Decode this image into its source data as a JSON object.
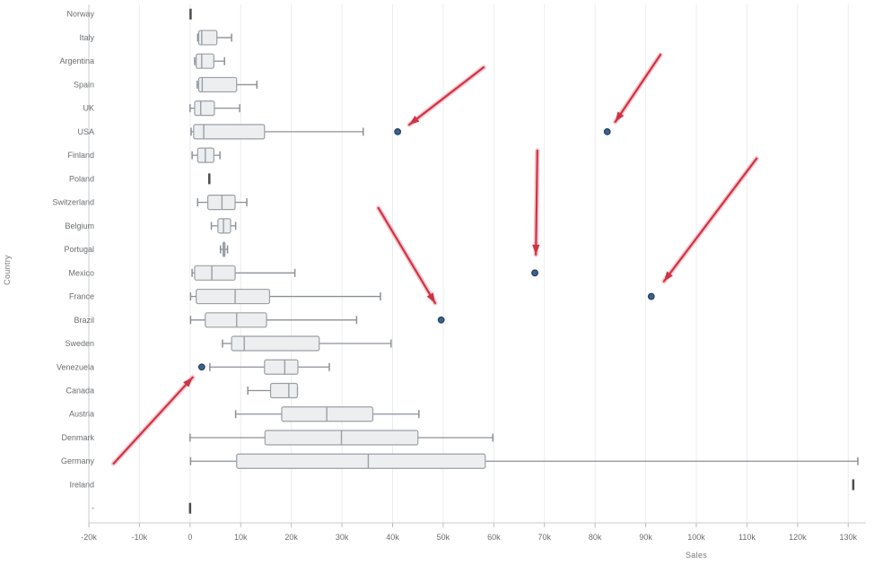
{
  "chart": {
    "y_axis_title": "Country",
    "x_axis_title": "Sales",
    "colors": {
      "box_fill": "#eceef0",
      "box_border": "#9aa0a6",
      "whisker": "#8c9196",
      "gridline": "#ebecee",
      "axis_line": "#c9cbcd",
      "tick_mark": "#b9bbbd",
      "label_text": "#6a6d70",
      "single_dash": "#4a4d50",
      "outlier_fill": "#3a628f",
      "outlier_stroke": "#273f5c",
      "arrow_core": "#cf3344",
      "arrow_glow": "rgba(232,112,128,0.38)"
    },
    "chart_data": {
      "type": "boxplot",
      "orientation": "horizontal",
      "value_unit": "thousands",
      "x_ticks": [
        {
          "value": -20,
          "label": "-20k"
        },
        {
          "value": -10,
          "label": "-10k"
        },
        {
          "value": 0,
          "label": "0"
        },
        {
          "value": 10,
          "label": "10k"
        },
        {
          "value": 20,
          "label": "20k"
        },
        {
          "value": 30,
          "label": "30k"
        },
        {
          "value": 40,
          "label": "40k"
        },
        {
          "value": 50,
          "label": "50k"
        },
        {
          "value": 60,
          "label": "60k"
        },
        {
          "value": 70,
          "label": "70k"
        },
        {
          "value": 80,
          "label": "80k"
        },
        {
          "value": 90,
          "label": "90k"
        },
        {
          "value": 100,
          "label": "100k"
        },
        {
          "value": 110,
          "label": "110k"
        },
        {
          "value": 120,
          "label": "120k"
        },
        {
          "value": 130,
          "label": "130k"
        }
      ],
      "x_range": [
        -20,
        133.5
      ],
      "series": [
        {
          "country": "Norway",
          "min": 0.1,
          "q1": 0.1,
          "median": 0.1,
          "q3": 0.1,
          "max": 0.1,
          "outliers": []
        },
        {
          "country": "Italy",
          "min": 1.5,
          "q1": 1.7,
          "median": 2.3,
          "q3": 5.3,
          "max": 8.2,
          "outliers": []
        },
        {
          "country": "Argentina",
          "min": 0.9,
          "q1": 1.2,
          "median": 2.3,
          "q3": 4.7,
          "max": 6.8,
          "outliers": []
        },
        {
          "country": "Spain",
          "min": 1.4,
          "q1": 1.7,
          "median": 2.4,
          "q3": 9.2,
          "max": 13.2,
          "outliers": []
        },
        {
          "country": "UK",
          "min": 0.0,
          "q1": 0.9,
          "median": 2.1,
          "q3": 4.8,
          "max": 9.8,
          "outliers": []
        },
        {
          "country": "USA",
          "min": 0.2,
          "q1": 0.7,
          "median": 2.7,
          "q3": 14.7,
          "max": 34.2,
          "outliers": [
            41.0,
            82.4
          ]
        },
        {
          "country": "Finland",
          "min": 0.4,
          "q1": 1.5,
          "median": 3.0,
          "q3": 4.7,
          "max": 5.9,
          "outliers": []
        },
        {
          "country": "Poland",
          "min": 3.8,
          "q1": 3.8,
          "median": 3.8,
          "q3": 3.8,
          "max": 3.8,
          "outliers": []
        },
        {
          "country": "Switzerland",
          "min": 1.5,
          "q1": 3.5,
          "median": 6.3,
          "q3": 8.9,
          "max": 11.2,
          "outliers": []
        },
        {
          "country": "Belgium",
          "min": 4.2,
          "q1": 5.5,
          "median": 6.6,
          "q3": 8.0,
          "max": 9.0,
          "outliers": []
        },
        {
          "country": "Portugal",
          "min": 6.0,
          "q1": 6.5,
          "median": 6.7,
          "q3": 6.9,
          "max": 7.4,
          "outliers": []
        },
        {
          "country": "Mexico",
          "min": 0.4,
          "q1": 0.9,
          "median": 4.3,
          "q3": 8.9,
          "max": 20.7,
          "outliers": [
            68.1
          ]
        },
        {
          "country": "France",
          "min": 0.1,
          "q1": 1.2,
          "median": 8.9,
          "q3": 15.7,
          "max": 37.6,
          "outliers": [
            91.1
          ]
        },
        {
          "country": "Brazil",
          "min": 0.1,
          "q1": 3.0,
          "median": 9.2,
          "q3": 15.1,
          "max": 32.9,
          "outliers": [
            49.6
          ]
        },
        {
          "country": "Sweden",
          "min": 6.4,
          "q1": 8.2,
          "median": 10.7,
          "q3": 25.5,
          "max": 39.7,
          "outliers": []
        },
        {
          "country": "Venezuela",
          "min": 3.9,
          "q1": 14.7,
          "median": 18.7,
          "q3": 21.3,
          "max": 27.5,
          "outliers": [
            2.3
          ]
        },
        {
          "country": "Canada",
          "min": 11.4,
          "q1": 15.9,
          "median": 19.5,
          "q3": 21.2,
          "max": 21.2,
          "outliers": []
        },
        {
          "country": "Austria",
          "min": 9.0,
          "q1": 18.1,
          "median": 27.0,
          "q3": 36.1,
          "max": 45.2,
          "outliers": []
        },
        {
          "country": "Denmark",
          "min": 0.0,
          "q1": 14.8,
          "median": 29.9,
          "q3": 45.0,
          "max": 59.8,
          "outliers": []
        },
        {
          "country": "Germany",
          "min": 0.1,
          "q1": 9.2,
          "median": 35.2,
          "q3": 58.3,
          "max": 131.9,
          "outliers": []
        },
        {
          "country": "Ireland",
          "min": 131.0,
          "q1": 131.0,
          "median": 131.0,
          "q3": 131.0,
          "max": 131.0,
          "outliers": []
        },
        {
          "country": "-",
          "min": 0.0,
          "q1": 0.0,
          "median": 0.0,
          "q3": 0.0,
          "max": 0.0,
          "outliers": []
        }
      ],
      "annotations": {
        "arrows": [
          {
            "points_to": "USA outlier 41k",
            "x1": 58.0,
            "row1": 2.26,
            "x2": 43.3,
            "row2": 4.7
          },
          {
            "points_to": "USA outlier 82k",
            "x1": 92.9,
            "row1": 1.73,
            "x2": 84.0,
            "row2": 4.58
          },
          {
            "points_to": "Mexico outlier 68k",
            "x1": 68.6,
            "row1": 5.8,
            "x2": 68.3,
            "row2": 10.22
          },
          {
            "points_to": "France outlier 91k",
            "x1": 111.9,
            "row1": 6.14,
            "x2": 93.6,
            "row2": 11.36
          },
          {
            "points_to": "Brazil outlier 50k",
            "x1": 37.2,
            "row1": 8.24,
            "x2": 48.4,
            "row2": 12.28
          },
          {
            "points_to": "Venezuela outlier 2k",
            "x1": -15.1,
            "row1": 19.1,
            "x2": 0.5,
            "row2": 15.44
          }
        ]
      }
    }
  }
}
